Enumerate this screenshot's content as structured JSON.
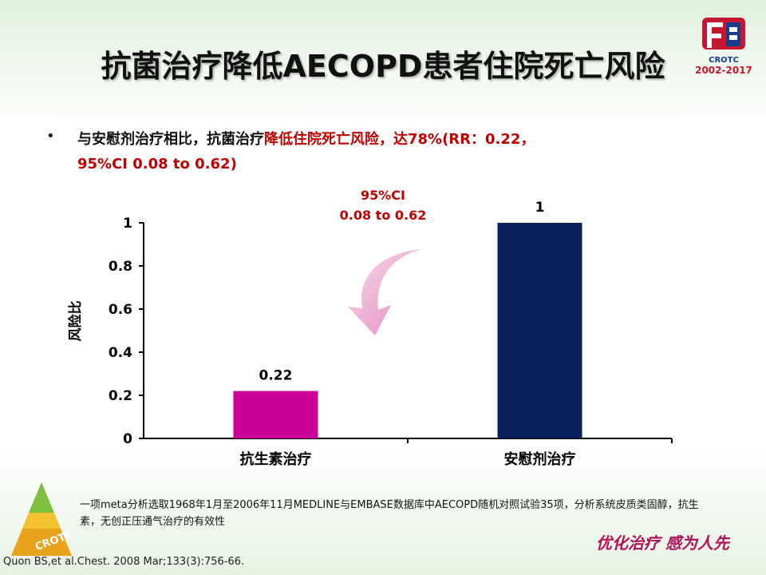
{
  "title": "抗菌治疗降低AECOPD患者住院死亡风险",
  "logo": {
    "name": "CROTC",
    "years": "2002-2017"
  },
  "bullet": {
    "text_black": "与安慰剂治疗相比，抗菌治疗",
    "text_red": "降低住院死亡风险，达78%(RR：0.22，",
    "line2": "95%CI 0.08 to 0.62)"
  },
  "ci_annotation": {
    "line1": "95%CI",
    "line2": "0.08 to 0.62"
  },
  "chart_data": {
    "type": "bar",
    "categories": [
      "抗生素治疗",
      "安慰剂治疗"
    ],
    "values": [
      0.22,
      1
    ],
    "value_labels": [
      "0.22",
      "1"
    ],
    "ylabel": "风险比",
    "ylim": [
      0,
      1
    ],
    "yticks": [
      "0",
      "0.2",
      "0.4",
      "0.6",
      "0.8",
      "1"
    ],
    "bar_colors": [
      "#cc0099",
      "#0a1f5c"
    ],
    "grid": false,
    "legend": false
  },
  "footnote": "一项meta分析选取1968年1月至2006年11月MEDLINE与EMBASE数据库中AECOPD随机对照试验35项，分析系统皮质类固醇，抗生素，无创正压通气治疗的有效性",
  "citation": "Quon BS,et al.Chest. 2008 Mar;133(3):756-66.",
  "pyramid_label": "CROTC",
  "slogan": "优化治疗 感为人先"
}
